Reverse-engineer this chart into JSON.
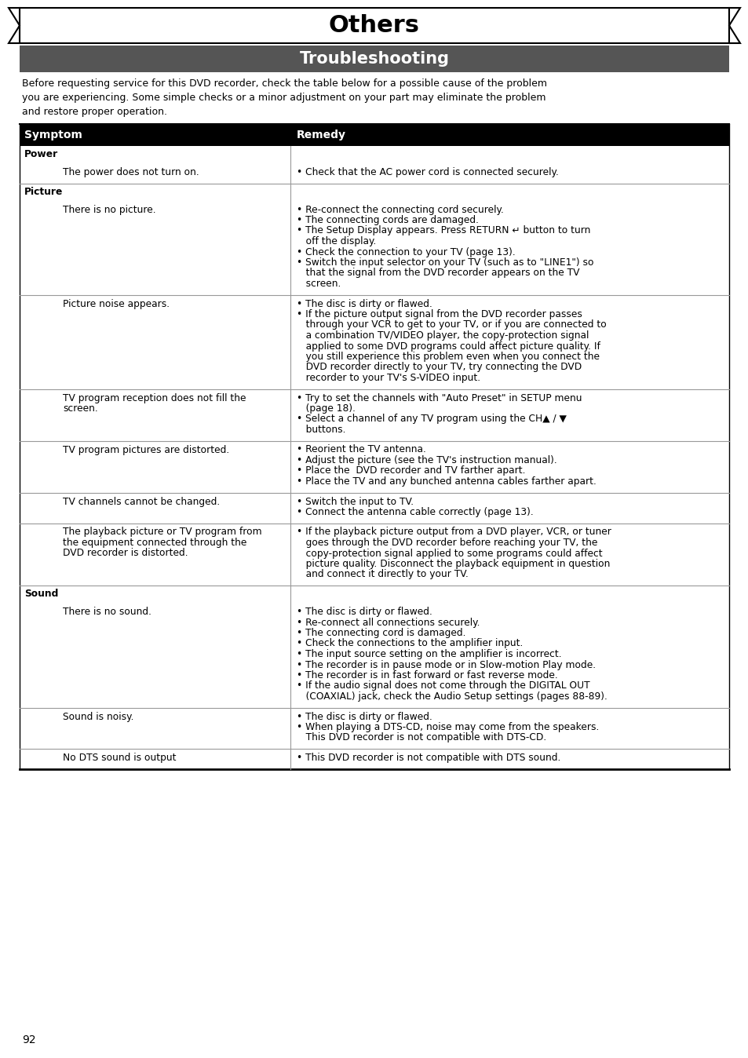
{
  "title": "Others",
  "subtitle": "Troubleshooting",
  "subtitle_bg": "#555555",
  "intro_lines": [
    "Before requesting service for this DVD recorder, check the table below for a possible cause of the problem",
    "you are experiencing. Some simple checks or a minor adjustment on your part may eliminate the problem",
    "and restore proper operation."
  ],
  "header_bg": "#000000",
  "header_fg": "#ffffff",
  "col1_header": "Symptom",
  "col2_header": "Remedy",
  "page_number": "92",
  "rows": [
    {
      "type": "category",
      "text": "Power"
    },
    {
      "type": "data",
      "symptom": "The power does not turn on.",
      "remedy": [
        "• Check that the AC power cord is connected securely."
      ]
    },
    {
      "type": "category",
      "text": "Picture"
    },
    {
      "type": "data",
      "symptom": "There is no picture.",
      "remedy": [
        "• Re-connect the connecting cord securely.",
        "• The connecting cords are damaged.",
        "• The Setup Display appears. Press RETURN ↵ button to turn",
        "   off the display.",
        "• Check the connection to your TV (page 13).",
        "• Switch the input selector on your TV (such as to \"LINE1\") so",
        "   that the signal from the DVD recorder appears on the TV",
        "   screen."
      ]
    },
    {
      "type": "data",
      "symptom": "Picture noise appears.",
      "remedy": [
        "• The disc is dirty or flawed.",
        "• If the picture output signal from the DVD recorder passes",
        "   through your VCR to get to your TV, or if you are connected to",
        "   a combination TV/VIDEO player, the copy-protection signal",
        "   applied to some DVD programs could affect picture quality. If",
        "   you still experience this problem even when you connect the",
        "   DVD recorder directly to your TV, try connecting the DVD",
        "   recorder to your TV's S-VIDEO input."
      ]
    },
    {
      "type": "data",
      "symptom": "TV program reception does not fill the\nscreen.",
      "remedy": [
        "• Try to set the channels with \"Auto Preset\" in SETUP menu",
        "   (page 18).",
        "• Select a channel of any TV program using the CH▲ / ▼",
        "   buttons."
      ]
    },
    {
      "type": "data",
      "symptom": "TV program pictures are distorted.",
      "remedy": [
        "• Reorient the TV antenna.",
        "• Adjust the picture (see the TV's instruction manual).",
        "• Place the  DVD recorder and TV farther apart.",
        "• Place the TV and any bunched antenna cables farther apart."
      ]
    },
    {
      "type": "data",
      "symptom": "TV channels cannot be changed.",
      "remedy": [
        "• Switch the input to TV.",
        "• Connect the antenna cable correctly (page 13)."
      ]
    },
    {
      "type": "data",
      "symptom": "The playback picture or TV program from\nthe equipment connected through the\nDVD recorder is distorted.",
      "remedy": [
        "• If the playback picture output from a DVD player, VCR, or tuner",
        "   goes through the DVD recorder before reaching your TV, the",
        "   copy-protection signal applied to some programs could affect",
        "   picture quality. Disconnect the playback equipment in question",
        "   and connect it directly to your TV."
      ]
    },
    {
      "type": "category",
      "text": "Sound"
    },
    {
      "type": "data",
      "symptom": "There is no sound.",
      "remedy": [
        "• The disc is dirty or flawed.",
        "• Re-connect all connections securely.",
        "• The connecting cord is damaged.",
        "• Check the connections to the amplifier input.",
        "• The input source setting on the amplifier is incorrect.",
        "• The recorder is in pause mode or in Slow-motion Play mode.",
        "• The recorder is in fast forward or fast reverse mode.",
        "• If the audio signal does not come through the DIGITAL OUT",
        "   (COAXIAL) jack, check the Audio Setup settings (pages 88-89)."
      ]
    },
    {
      "type": "data",
      "symptom": "Sound is noisy.",
      "remedy": [
        "• The disc is dirty or flawed.",
        "• When playing a DTS-CD, noise may come from the speakers.",
        "   This DVD recorder is not compatible with DTS-CD."
      ]
    },
    {
      "type": "data",
      "symptom": "No DTS sound is output",
      "remedy": [
        "• This DVD recorder is not compatible with DTS sound."
      ]
    }
  ]
}
